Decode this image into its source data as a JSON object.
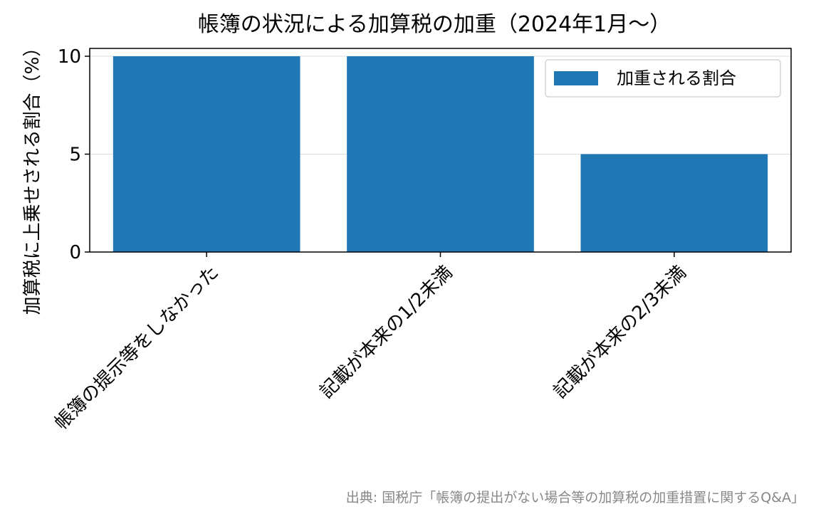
{
  "chart_data": {
    "type": "bar",
    "title": "帳簿の状況による加算税の加重（2024年1月～）",
    "xlabel": "",
    "ylabel": "加算税に上乗せされる割合（%）",
    "categories": [
      "帳簿の提示等をしなかった",
      "記載が本来の1/2未満",
      "記載が本来の2/3未満"
    ],
    "series": [
      {
        "name": "加重される割合",
        "values": [
          10,
          10,
          5
        ],
        "color": "#1f77b4"
      }
    ],
    "ylim": [
      0,
      10.4
    ],
    "yticks": [
      0,
      5,
      10
    ],
    "grid": "horizontal",
    "legend_position": "top-right"
  },
  "source_note": "出典: 国税庁「帳簿の提出がない場合等の加算税の加重措置に関するQ&A」"
}
